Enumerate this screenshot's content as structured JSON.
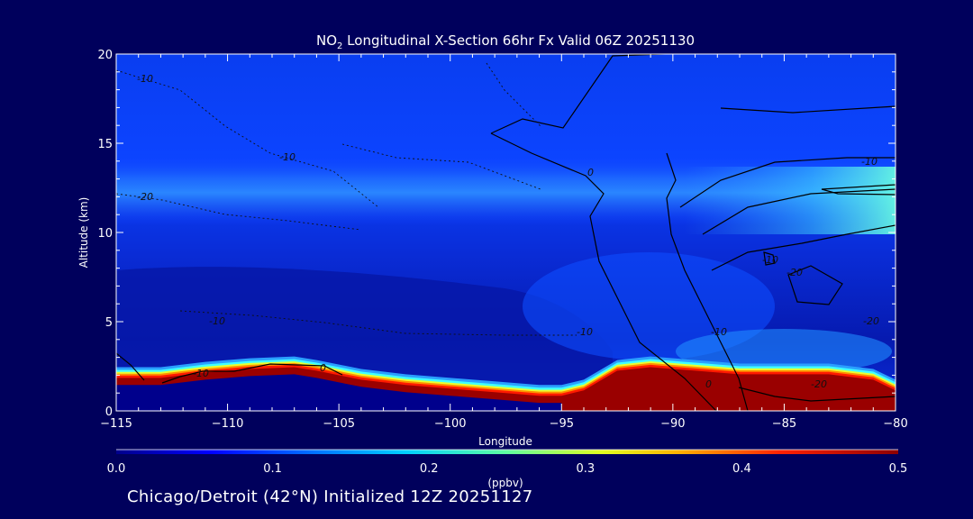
{
  "chart_data": {
    "type": "heatmap",
    "title": {
      "prefix": "NO",
      "subscript": "2",
      "rest": " Longitudinal X-Section 66hr  Fx Valid 06Z 20251130"
    },
    "xlabel": "Longitude",
    "ylabel": "Altitude (km)",
    "xlim": [
      -115,
      -80
    ],
    "ylim": [
      0,
      20
    ],
    "x_ticks": [
      -115,
      -110,
      -105,
      -100,
      -95,
      -90,
      -85,
      -80
    ],
    "x_tick_labels": [
      "−115",
      "−110",
      "−105",
      "−100",
      "−95",
      "−90",
      "−85",
      "−80"
    ],
    "y_ticks": [
      0,
      5,
      10,
      15,
      20
    ],
    "y_tick_labels": [
      "0",
      "5",
      "10",
      "15",
      "20"
    ],
    "colorbar": {
      "label": "(ppbv)",
      "range": [
        0.0,
        0.5
      ],
      "ticks": [
        0.0,
        0.1,
        0.2,
        0.3,
        0.4,
        0.5
      ],
      "tick_labels": [
        "0.0",
        "0.1",
        "0.2",
        "0.3",
        "0.4",
        "0.5"
      ],
      "colors": [
        "#00008c",
        "#0000ff",
        "#0088ff",
        "#00ffff",
        "#80ff80",
        "#ffff00",
        "#ff8000",
        "#ff0000",
        "#8c0000"
      ]
    },
    "boundary_layer": {
      "description": "High NO2 near surface following terrain",
      "longitude": [
        -115,
        -113,
        -111,
        -109,
        -107,
        -106,
        -104,
        -102,
        -100,
        -98,
        -96,
        -95,
        -94,
        -92.5,
        -91,
        -89,
        -87,
        -85,
        -83,
        -81,
        -80
      ],
      "top_km": [
        1.9,
        1.9,
        2.2,
        2.4,
        2.5,
        2.3,
        1.8,
        1.5,
        1.3,
        1.1,
        0.9,
        0.9,
        1.2,
        2.3,
        2.5,
        2.3,
        2.1,
        2.1,
        2.1,
        1.8,
        1.2
      ],
      "peak_ppbv": 0.5
    },
    "upper_band": {
      "description": "Elevated NO2 layer near tropopause",
      "altitude_range_km": [
        11,
        14
      ],
      "peak_ppbv": 0.2
    },
    "contour_labels": [
      "-10",
      "-10",
      "-20",
      "-10",
      "0",
      "-10",
      "0",
      "-10",
      "-20",
      "-10",
      "-10",
      "-20",
      "0",
      "-10",
      "-20"
    ]
  },
  "footer": "Chicago/Detroit (42°N) Initialized 12Z 20251127"
}
